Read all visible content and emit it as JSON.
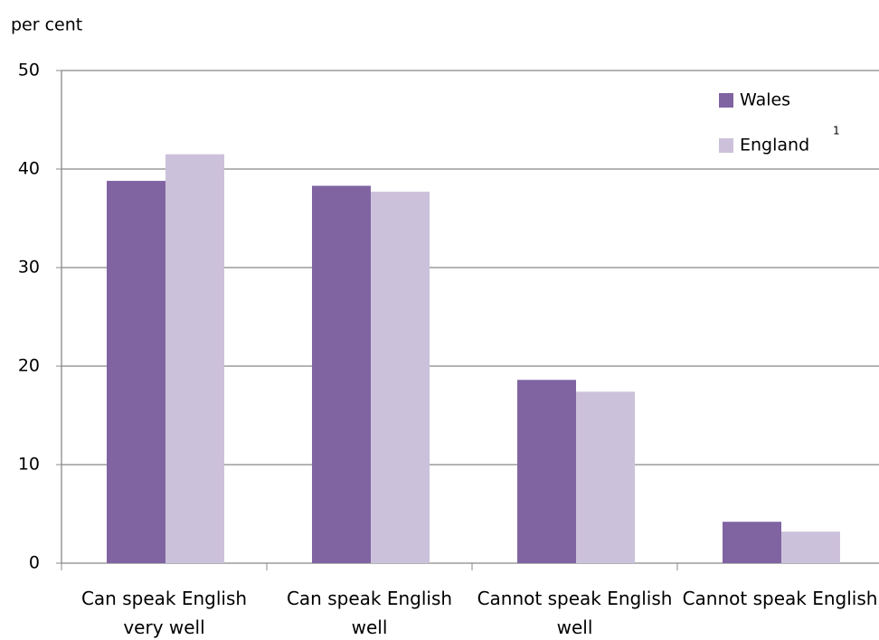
{
  "chart_data": {
    "type": "bar",
    "y_axis_label": "per cent",
    "categories": [
      "Can speak English very well",
      "Can speak English well",
      "Cannot speak English well",
      "Cannot speak English"
    ],
    "series": [
      {
        "name": "Wales",
        "color": "#8064a2",
        "values": [
          38.8,
          38.3,
          18.6,
          4.2
        ]
      },
      {
        "name": "England",
        "note": "1",
        "color": "#ccc1da",
        "values": [
          41.5,
          37.7,
          17.4,
          3.2
        ]
      }
    ],
    "ylim": [
      0,
      50
    ],
    "yticks": [
      0,
      10,
      20,
      30,
      40,
      50
    ],
    "grid": true,
    "legend": "upper right"
  }
}
